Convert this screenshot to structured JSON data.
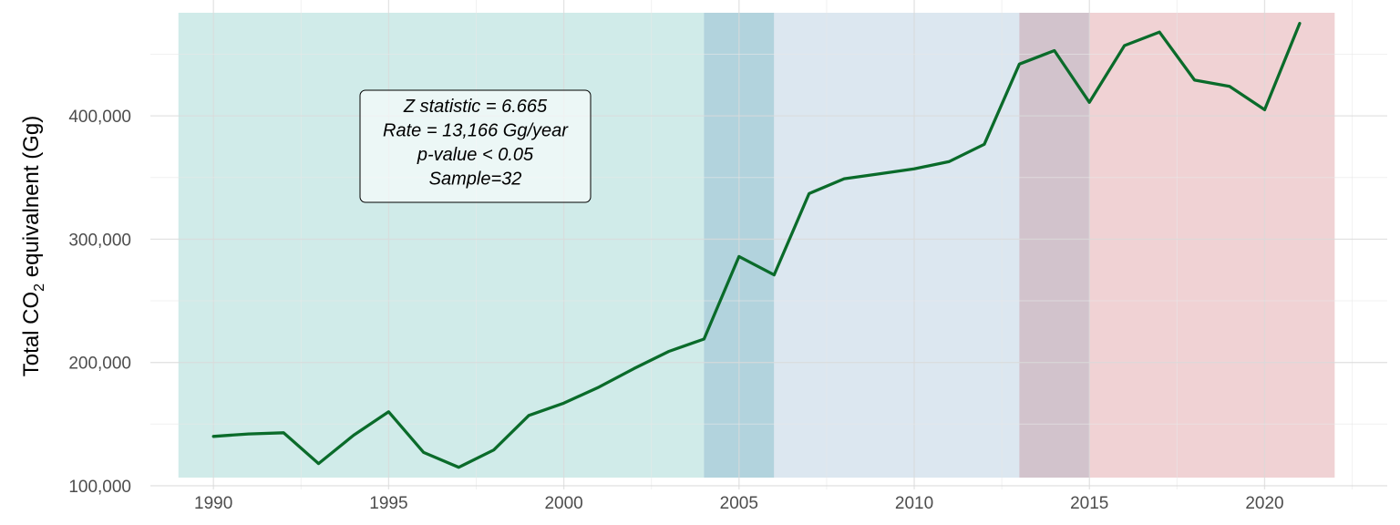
{
  "chart_data": {
    "type": "line",
    "ylabel_main": "Total CO",
    "ylabel_sub": "2",
    "ylabel_rest": " equivalnent (Gg)",
    "xlim": [
      1988.2,
      2023.5
    ],
    "ylim": [
      97000,
      494000
    ],
    "xticks": [
      1990,
      1995,
      2000,
      2005,
      2010,
      2015,
      2020
    ],
    "yticks": [
      100000,
      200000,
      300000,
      400000
    ],
    "ytick_labels": [
      "100,000",
      "200,000",
      "300,000",
      "400,000"
    ],
    "grid": true,
    "series": [
      {
        "color": "#0a6b2a",
        "x": [
          1990,
          1991,
          1992,
          1993,
          1994,
          1995,
          1996,
          1997,
          1998,
          1999,
          2000,
          2001,
          2002,
          2003,
          2004,
          2005,
          2006,
          2007,
          2008,
          2009,
          2010,
          2011,
          2012,
          2013,
          2014,
          2015,
          2016,
          2017,
          2018,
          2019,
          2020,
          2021
        ],
        "y": [
          140000,
          142000,
          143000,
          118000,
          141000,
          160000,
          127000,
          115000,
          129000,
          157000,
          167000,
          180000,
          195000,
          209000,
          219000,
          286000,
          271000,
          337000,
          349000,
          353000,
          357000,
          363000,
          377000,
          442000,
          453000,
          411000,
          457000,
          468000,
          429000,
          424000,
          405000,
          475000
        ]
      }
    ],
    "bands": [
      {
        "x0": 1989,
        "x1": 2004,
        "color": "#8ecfcb",
        "opacity": 0.42
      },
      {
        "x0": 2004,
        "x1": 2006,
        "color": "#5fa3b8",
        "opacity": 0.48
      },
      {
        "x0": 2006,
        "x1": 2013,
        "color": "#b6cde0",
        "opacity": 0.48
      },
      {
        "x0": 2013,
        "x1": 2015,
        "color": "#a98c9d",
        "opacity": 0.52
      },
      {
        "x0": 2015,
        "x1": 2022,
        "color": "#e2a6a9",
        "opacity": 0.5
      }
    ],
    "annotation": {
      "lines": [
        "Z statistic = 6.665",
        "Rate = 13,166 Gg/year",
        "p-value < 0.05",
        "Sample=32"
      ]
    }
  }
}
